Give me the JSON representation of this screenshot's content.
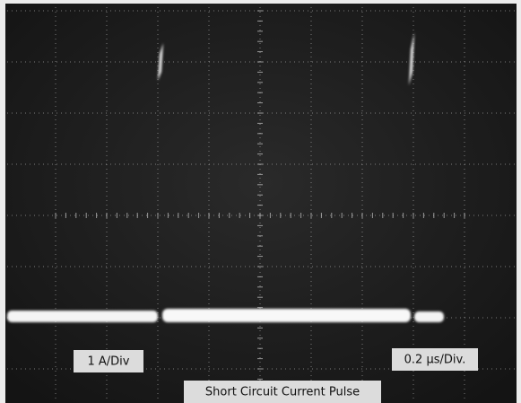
{
  "labels": {
    "vertical_scale": "1 A/Div",
    "horizontal_scale": "0.2 µs/Div.",
    "caption": "Short Circuit Current Pulse"
  }
}
